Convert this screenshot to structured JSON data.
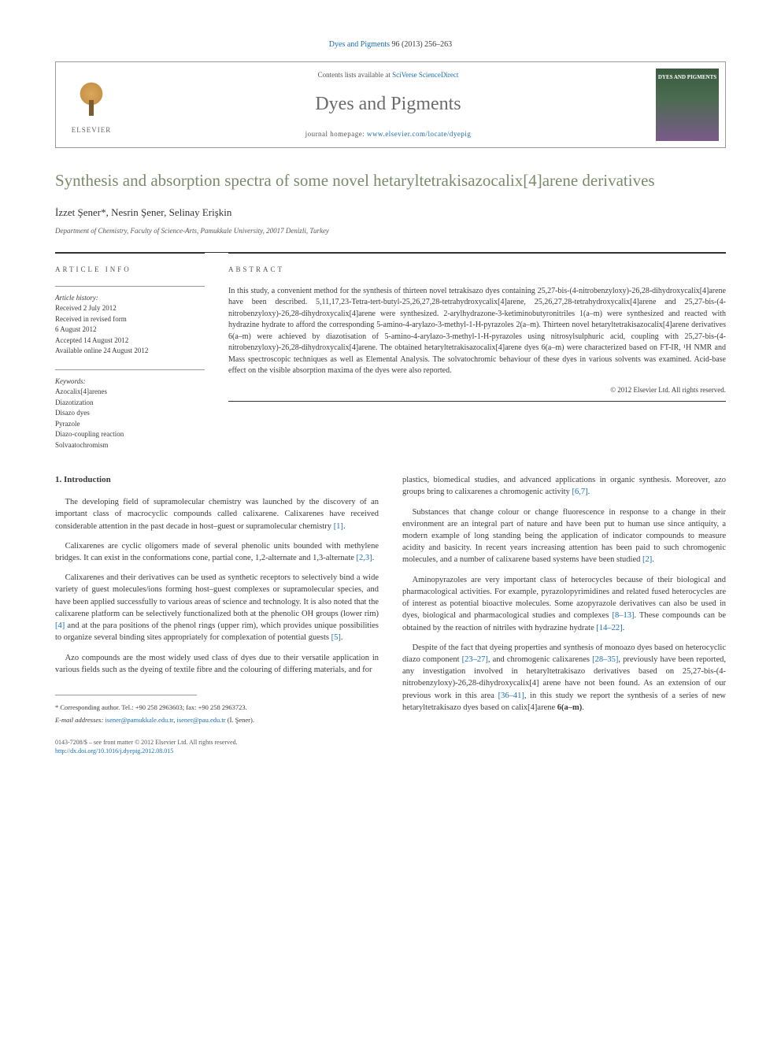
{
  "journal_ref": {
    "text_before": "Dyes and Pigments 96 (2013) 256–263",
    "link_text": "Dyes and Pigments",
    "link_after": " 96 (2013) 256–263"
  },
  "header": {
    "elsevier_label": "ELSEVIER",
    "contents_prefix": "Contents lists available at ",
    "contents_link": "SciVerse ScienceDirect",
    "journal_name": "Dyes and Pigments",
    "homepage_prefix": "journal homepage: ",
    "homepage_link": "www.elsevier.com/locate/dyepig",
    "cover_text": "DYES AND PIGMENTS"
  },
  "title": "Synthesis and absorption spectra of some novel hetaryltetrakisazocalix[4]arene derivatives",
  "authors": "İzzet Şener*, Nesrin Şener, Selinay Erişkin",
  "affiliation": "Department of Chemistry, Faculty of Science-Arts, Pamukkale University, 20017 Denizli, Turkey",
  "section_labels": {
    "article_info": "ARTICLE INFO",
    "abstract": "ABSTRACT"
  },
  "history": {
    "title": "Article history:",
    "received": "Received 2 July 2012",
    "revised_label": "Received in revised form",
    "revised_date": "6 August 2012",
    "accepted": "Accepted 14 August 2012",
    "online": "Available online 24 August 2012"
  },
  "keywords": {
    "title": "Keywords:",
    "items": [
      "Azocalix[4]arenes",
      "Diazotization",
      "Disazo dyes",
      "Pyrazole",
      "Diazo-coupling reaction",
      "Solvaatochromism"
    ]
  },
  "abstract": {
    "text": "In this study, a convenient method for the synthesis of thirteen novel tetrakisazo dyes containing 25,27-bis-(4-nitrobenzyloxy)-26,28-dihydroxycalix[4]arene have been described. 5,11,17,23-Tetra-tert-butyl-25,26,27,28-tetrahydroxycalix[4]arene, 25,26,27,28-tetrahydroxycalix[4]arene and 25,27-bis-(4-nitrobenzyloxy)-26,28-dihydroxycalix[4]arene were synthesized. 2-arylhydrazone-3-ketiminobutyronitriles 1(a–m) were synthesized and reacted with hydrazine hydrate to afford the corresponding 5-amino-4-arylazo-3-methyl-1-H-pyrazoles 2(a–m). Thirteen novel hetaryltetrakisazocalix[4]arene derivatives 6(a–m) were achieved by diazotisation of 5-amino-4-arylazo-3-methyl-1-H-pyrazoles using nitrosylsulphuric acid, coupling with 25,27-bis-(4-nitrobenzyloxy)-26,28-dihydroxycalix[4]arene. The obtained hetaryltetrakisazocalix[4]arene dyes 6(a–m) were characterized based on FT-IR, ¹H NMR and Mass spectroscopic techniques as well as Elemental Analysis. The solvatochromic behaviour of these dyes in various solvents was examined. Acid-base effect on the visible absorption maxima of the dyes were also reported.",
    "copyright": "© 2012 Elsevier Ltd. All rights reserved."
  },
  "intro": {
    "heading": "1. Introduction",
    "p1": "The developing field of supramolecular chemistry was launched by the discovery of an important class of macrocyclic compounds called calixarene. Calixarenes have received considerable attention in the past decade in host–guest or supramolecular chemistry ",
    "p1_ref": "[1]",
    "p1_end": ".",
    "p2": "Calixarenes are cyclic oligomers made of several phenolic units bounded with methylene bridges. It can exist in the conformations cone, partial cone, 1,2-alternate and 1,3-alternate ",
    "p2_ref": "[2,3]",
    "p2_end": ".",
    "p3a": "Calixarenes and their derivatives can be used as synthetic receptors to selectively bind a wide variety of guest molecules/ions forming host–guest complexes or supramolecular species, and have been applied successfully to various areas of science and technology. It is also noted that the calixarene platform can be selectively functionalized both at the phenolic OH groups (lower rim) ",
    "p3_ref1": "[4]",
    "p3b": " and at the para positions of the phenol rings (upper rim), which provides unique possibilities to organize several binding sites appropriately for complexation of potential guests ",
    "p3_ref2": "[5]",
    "p3_end": ".",
    "p4": "Azo compounds are the most widely used class of dyes due to their versatile application in various fields such as the dyeing of textile fibre and the colouring of differing materials, and for",
    "p5a": "plastics, biomedical studies, and advanced applications in organic synthesis. Moreover, azo groups bring to calixarenes a chromogenic activity ",
    "p5_ref": "[6,7]",
    "p5_end": ".",
    "p6a": "Substances that change colour or change fluorescence in response to a change in their environment are an integral part of nature and have been put to human use since antiquity, a modern example of long standing being the application of indicator compounds to measure acidity and basicity. In recent years increasing attention has been paid to such chromogenic molecules, and a number of calixarene based systems have been studied ",
    "p6_ref": "[2]",
    "p6_end": ".",
    "p7a": "Aminopyrazoles are very important class of heterocycles because of their biological and pharmacological activities. For example, pyrazolopyrimidines and related fused heterocycles are of interest as potential bioactive molecules. Some azopyrazole derivatives can also be used in dyes, biological and pharmacological studies and complexes ",
    "p7_ref1": "[8–13]",
    "p7b": ". These compounds can be obtained by the reaction of nitriles with hydrazine hydrate ",
    "p7_ref2": "[14–22]",
    "p7_end": ".",
    "p8a": "Despite of the fact that dyeing properties and synthesis of monoazo dyes based on heterocyclic diazo component ",
    "p8_ref1": "[23–27]",
    "p8b": ", and chromogenic calixarenes ",
    "p8_ref2": "[28–35]",
    "p8c": ", previously have been reported, any investigation involved in hetaryltetrakisazo derivatives based on 25,27-bis-(4-nitrobenzyloxy)-26,28-dihydroxycalix[4] arene have not been found. As an extension of our previous work in this area ",
    "p8_ref3": "[36–41]",
    "p8d": ", in this study we report the synthesis of a series of new hetaryltetrakisazo dyes based on calix[4]arene ",
    "p8_bold": "6(a–m)",
    "p8_end": "."
  },
  "footnote": {
    "corr": "* Corresponding author. Tel.: +90 258 2963603; fax: +90 258 2963723.",
    "email_label": "E-mail addresses: ",
    "email1": "isener@pamukkale.edu.tr",
    "email_sep": ", ",
    "email2": "isener@pau.edu.tr",
    "email_name": " (İ. Şener)."
  },
  "bottom": {
    "line1": "0143-7208/$ – see front matter © 2012 Elsevier Ltd. All rights reserved.",
    "doi_url": "http://dx.doi.org/10.1016/j.dyepig.2012.08.015"
  }
}
